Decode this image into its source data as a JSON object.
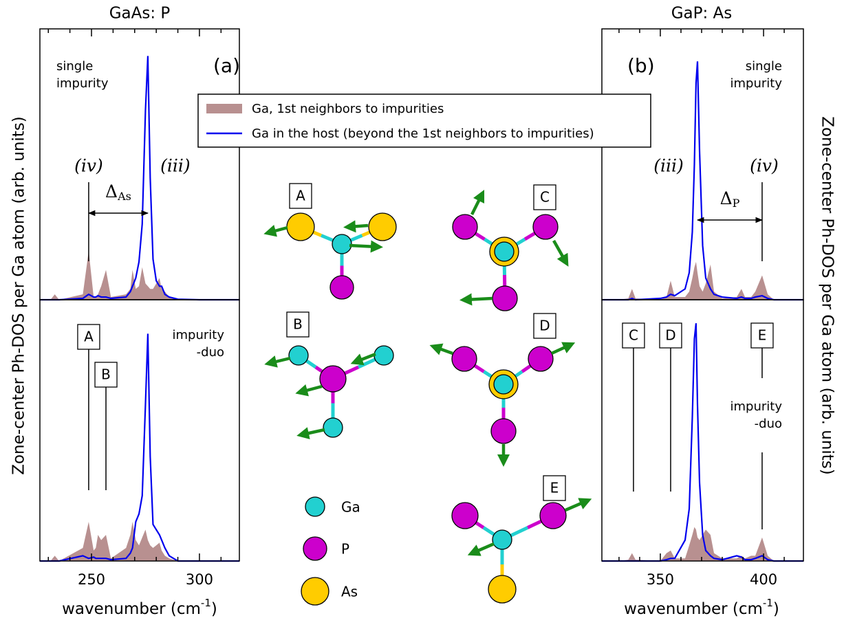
{
  "chart_data": [
    {
      "type": "spectrum",
      "title": "GaAs: P",
      "ylabel": "Zone-center Ph-DOS per Ga atom (arb. units)",
      "panel_label": "(a)",
      "note": [
        "single",
        "impurity"
      ],
      "xlim": [
        226.1,
        318.5
      ],
      "ylim": [
        0,
        1
      ],
      "xticks": [
        250,
        300
      ],
      "xminor": [
        230,
        240,
        260,
        270,
        280,
        290,
        310
      ],
      "x": [
        226.1,
        231,
        233,
        235,
        246,
        248.7,
        251,
        252,
        253,
        254.5,
        256.7,
        259,
        266,
        268,
        269,
        270.5,
        272,
        273.5,
        275,
        276.1,
        277.2,
        278.5,
        280,
        281.5,
        282.5,
        284,
        286,
        290,
        300,
        318.5
      ],
      "series": [
        {
          "name": "Ga, 1st neighbors to impurities",
          "type": "area",
          "color": "#b89090",
          "values": [
            0,
            0,
            0.02,
            0,
            0.02,
            0.18,
            0.01,
            0.01,
            0.02,
            0.05,
            0.11,
            0.01,
            0.02,
            0.04,
            0.11,
            0.04,
            0.05,
            0.12,
            0.06,
            0.05,
            0.04,
            0.04,
            0.06,
            0.08,
            0.04,
            0.03,
            0.01,
            0,
            0,
            0
          ]
        },
        {
          "name": "Ga in the host (beyond the 1st neighbors to impurities)",
          "type": "line",
          "color": "#0000ee",
          "values": [
            0,
            0,
            0,
            0,
            0.005,
            0.02,
            0.01,
            0.01,
            0.015,
            0.01,
            0.01,
            0.005,
            0.01,
            0.03,
            0.05,
            0.08,
            0.14,
            0.28,
            0.7,
            0.9,
            0.45,
            0.15,
            0.07,
            0.05,
            0.05,
            0.02,
            0.01,
            0.002,
            0,
            0
          ]
        }
      ],
      "peaks": [
        {
          "label": "(iv)",
          "x": 248.7
        },
        {
          "label": "(iii)",
          "x": 276.1
        }
      ],
      "delta": {
        "symbol": "Δ",
        "sub": "As",
        "from": 248.7,
        "to": 276.1
      }
    },
    {
      "type": "spectrum",
      "xlabel": {
        "text": "wavenumber (cm",
        "sup": "-1",
        "end": ")"
      },
      "note": [
        "impurity",
        "-duo"
      ],
      "xlim": [
        226.1,
        318.5
      ],
      "ylim": [
        0,
        1
      ],
      "xticks": [
        250,
        300
      ],
      "xminor": [
        230,
        240,
        260,
        270,
        280,
        290,
        310
      ],
      "x": [
        226.1,
        231,
        233,
        235,
        246,
        248.7,
        251,
        252,
        253,
        254.5,
        256.7,
        259,
        266,
        268,
        269,
        270.5,
        272,
        273.5,
        275,
        276.1,
        277.2,
        278.5,
        280,
        281.5,
        282.5,
        284,
        286,
        290,
        300,
        318.5
      ],
      "series": [
        {
          "type": "area",
          "color": "#b89090",
          "values": [
            0,
            0,
            0.02,
            0,
            0.05,
            0.15,
            0.04,
            0.05,
            0.1,
            0.08,
            0.1,
            0.01,
            0.05,
            0.1,
            0.15,
            0.08,
            0.06,
            0.09,
            0.12,
            0.08,
            0.06,
            0.05,
            0.06,
            0.07,
            0.04,
            0.02,
            0.01,
            0,
            0,
            0
          ]
        },
        {
          "type": "line",
          "color": "#0000ee",
          "values": [
            0,
            0,
            0,
            0,
            0.02,
            0.01,
            0.015,
            0.01,
            0.01,
            0.01,
            0.01,
            0.005,
            0.01,
            0.03,
            0.05,
            0.15,
            0.18,
            0.25,
            0.6,
            0.87,
            0.4,
            0.14,
            0.12,
            0.1,
            0.08,
            0.05,
            0.02,
            0,
            0,
            0
          ]
        }
      ],
      "markers": [
        {
          "label": "A",
          "x": 248.7
        },
        {
          "label": "B",
          "x": 256.7
        }
      ]
    },
    {
      "type": "spectrum",
      "title": "GaP: As",
      "ylabel": "Zone-center Ph-DOS per Ga atom (arb. units)",
      "panel_label": "(b)",
      "note": [
        "single",
        "impurity"
      ],
      "xlim": [
        321.7,
        419.3
      ],
      "ylim": [
        0,
        1
      ],
      "xticks": [
        350,
        400
      ],
      "xminor": [
        330,
        340,
        360,
        370,
        380,
        390,
        410
      ],
      "x": [
        321.7,
        330,
        334.5,
        336.3,
        338,
        350,
        353,
        355,
        357,
        362,
        364,
        365.5,
        366.5,
        367.3,
        368,
        369,
        370.5,
        372,
        374.3,
        376,
        380,
        387,
        389.3,
        391,
        394,
        396,
        399.3,
        402,
        405,
        419.3
      ],
      "series": [
        {
          "type": "area",
          "color": "#b89090",
          "values": [
            0,
            0,
            0.005,
            0.04,
            0.005,
            0,
            0.01,
            0.07,
            0.01,
            0.01,
            0.03,
            0.08,
            0.12,
            0.14,
            0.1,
            0.05,
            0.03,
            0.06,
            0.13,
            0.03,
            0.005,
            0.01,
            0.04,
            0.01,
            0.01,
            0.03,
            0.09,
            0.02,
            0,
            0
          ]
        },
        {
          "type": "line",
          "color": "#0000ee",
          "values": [
            0,
            0,
            0,
            0.005,
            0,
            0.005,
            0.01,
            0.02,
            0.015,
            0.04,
            0.1,
            0.25,
            0.5,
            0.8,
            0.88,
            0.55,
            0.2,
            0.08,
            0.04,
            0.02,
            0.01,
            0.005,
            0.01,
            0.005,
            0.005,
            0.01,
            0.015,
            0.005,
            0,
            0
          ]
        }
      ],
      "peaks": [
        {
          "label": "(iii)",
          "x": 368
        },
        {
          "label": "(iv)",
          "x": 399.3
        }
      ],
      "delta": {
        "symbol": "Δ",
        "sub": "P",
        "from": 368,
        "to": 399.3
      }
    },
    {
      "type": "spectrum",
      "xlabel": {
        "text": "wavenumber (cm",
        "sup": "-1",
        "end": ")"
      },
      "note": [
        "impurity",
        "-duo"
      ],
      "xlim": [
        321.7,
        419.3
      ],
      "ylim": [
        0,
        1
      ],
      "xticks": [
        350,
        400
      ],
      "xminor": [
        330,
        340,
        360,
        370,
        380,
        390,
        410
      ],
      "x": [
        321.7,
        330,
        334.5,
        336.3,
        338,
        350,
        353,
        355,
        357,
        362,
        364,
        365.5,
        366.5,
        367.3,
        368,
        369,
        370.5,
        372,
        374.3,
        376,
        380,
        387,
        389.3,
        391,
        394,
        396,
        399.3,
        402,
        405,
        419.3
      ],
      "series": [
        {
          "type": "area",
          "color": "#b89090",
          "values": [
            0,
            0,
            0.005,
            0.03,
            0.005,
            0,
            0.03,
            0.04,
            0.01,
            0.01,
            0.06,
            0.1,
            0.13,
            0.12,
            0.09,
            0.08,
            0.1,
            0.12,
            0.1,
            0.03,
            0.01,
            0.01,
            0.02,
            0.01,
            0.02,
            0.02,
            0.09,
            0.02,
            0,
            0
          ]
        },
        {
          "type": "line",
          "color": "#0000ee",
          "values": [
            0,
            0,
            0,
            0,
            0,
            0,
            0.005,
            0.01,
            0.01,
            0.08,
            0.2,
            0.55,
            0.85,
            0.91,
            0.6,
            0.3,
            0.1,
            0.04,
            0.02,
            0.01,
            0.005,
            0.02,
            0.015,
            0.005,
            0.005,
            0.01,
            0.02,
            0.005,
            0,
            0
          ]
        }
      ],
      "markers": [
        {
          "label": "C",
          "x": 337
        },
        {
          "label": "D",
          "x": 355
        },
        {
          "label": "E",
          "x": 399.3
        }
      ]
    }
  ],
  "diagram": {
    "modes": [
      "A",
      "B",
      "C",
      "D",
      "E"
    ],
    "species": [
      "Ga",
      "P",
      "As"
    ]
  }
}
